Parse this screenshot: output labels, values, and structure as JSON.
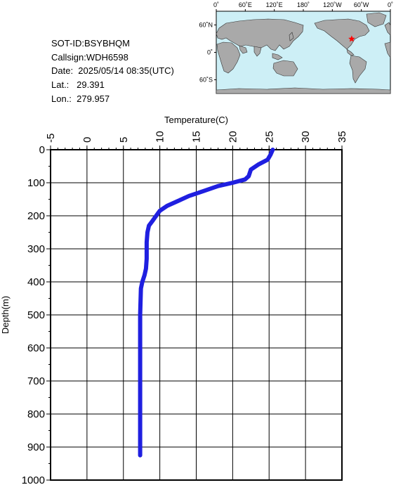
{
  "info": {
    "sot_id": "SOT-ID:BSYBHQM",
    "callsign": "Callsign:WDH6598",
    "date": "Date:  2025/05/14 08:35(UTC)",
    "lat": "Lat.:   29.391",
    "lon": "Lon.:  279.957"
  },
  "map": {
    "top_labels": [
      "0˚",
      "60˚E",
      "120˚E",
      "180˚",
      "120˚W",
      "60˚W",
      "0˚"
    ],
    "left_labels": [
      "60˚N",
      "0˚",
      "60˚S"
    ],
    "ocean_color": "#cdeff6",
    "land_color": "#a9a9a9",
    "marker_color": "#ff0000",
    "marker": {
      "lon": 279.957,
      "lat": 29.391
    }
  },
  "chart_data": {
    "type": "line",
    "title": "",
    "xlabel": "Temperature(C)",
    "ylabel": "Depth(m)",
    "xlim": [
      -5,
      35
    ],
    "ylim": [
      1000,
      0
    ],
    "x_ticks": [
      "-5",
      "0",
      "5",
      "10",
      "15",
      "20",
      "25",
      "30",
      "35"
    ],
    "y_ticks": [
      "0",
      "100",
      "200",
      "300",
      "400",
      "500",
      "600",
      "700",
      "800",
      "900",
      "1000"
    ],
    "grid": true,
    "line_color": "#1f1fe0",
    "series": [
      {
        "x": [
          25.5,
          25.2,
          24.8,
          23.5,
          22.5,
          22.2,
          21.7,
          20.0,
          18.0,
          16.0,
          14.0,
          12.5,
          11.0,
          10.0,
          9.5,
          9.0,
          8.5,
          8.3,
          8.2,
          8.2,
          8.1,
          7.9,
          7.6,
          7.4,
          7.3,
          7.3,
          7.3,
          7.3,
          7.3
        ],
        "y": [
          0,
          15,
          30,
          45,
          60,
          80,
          90,
          100,
          110,
          125,
          140,
          155,
          170,
          185,
          200,
          215,
          230,
          250,
          280,
          330,
          360,
          380,
          400,
          420,
          500,
          600,
          700,
          800,
          925
        ]
      }
    ]
  }
}
